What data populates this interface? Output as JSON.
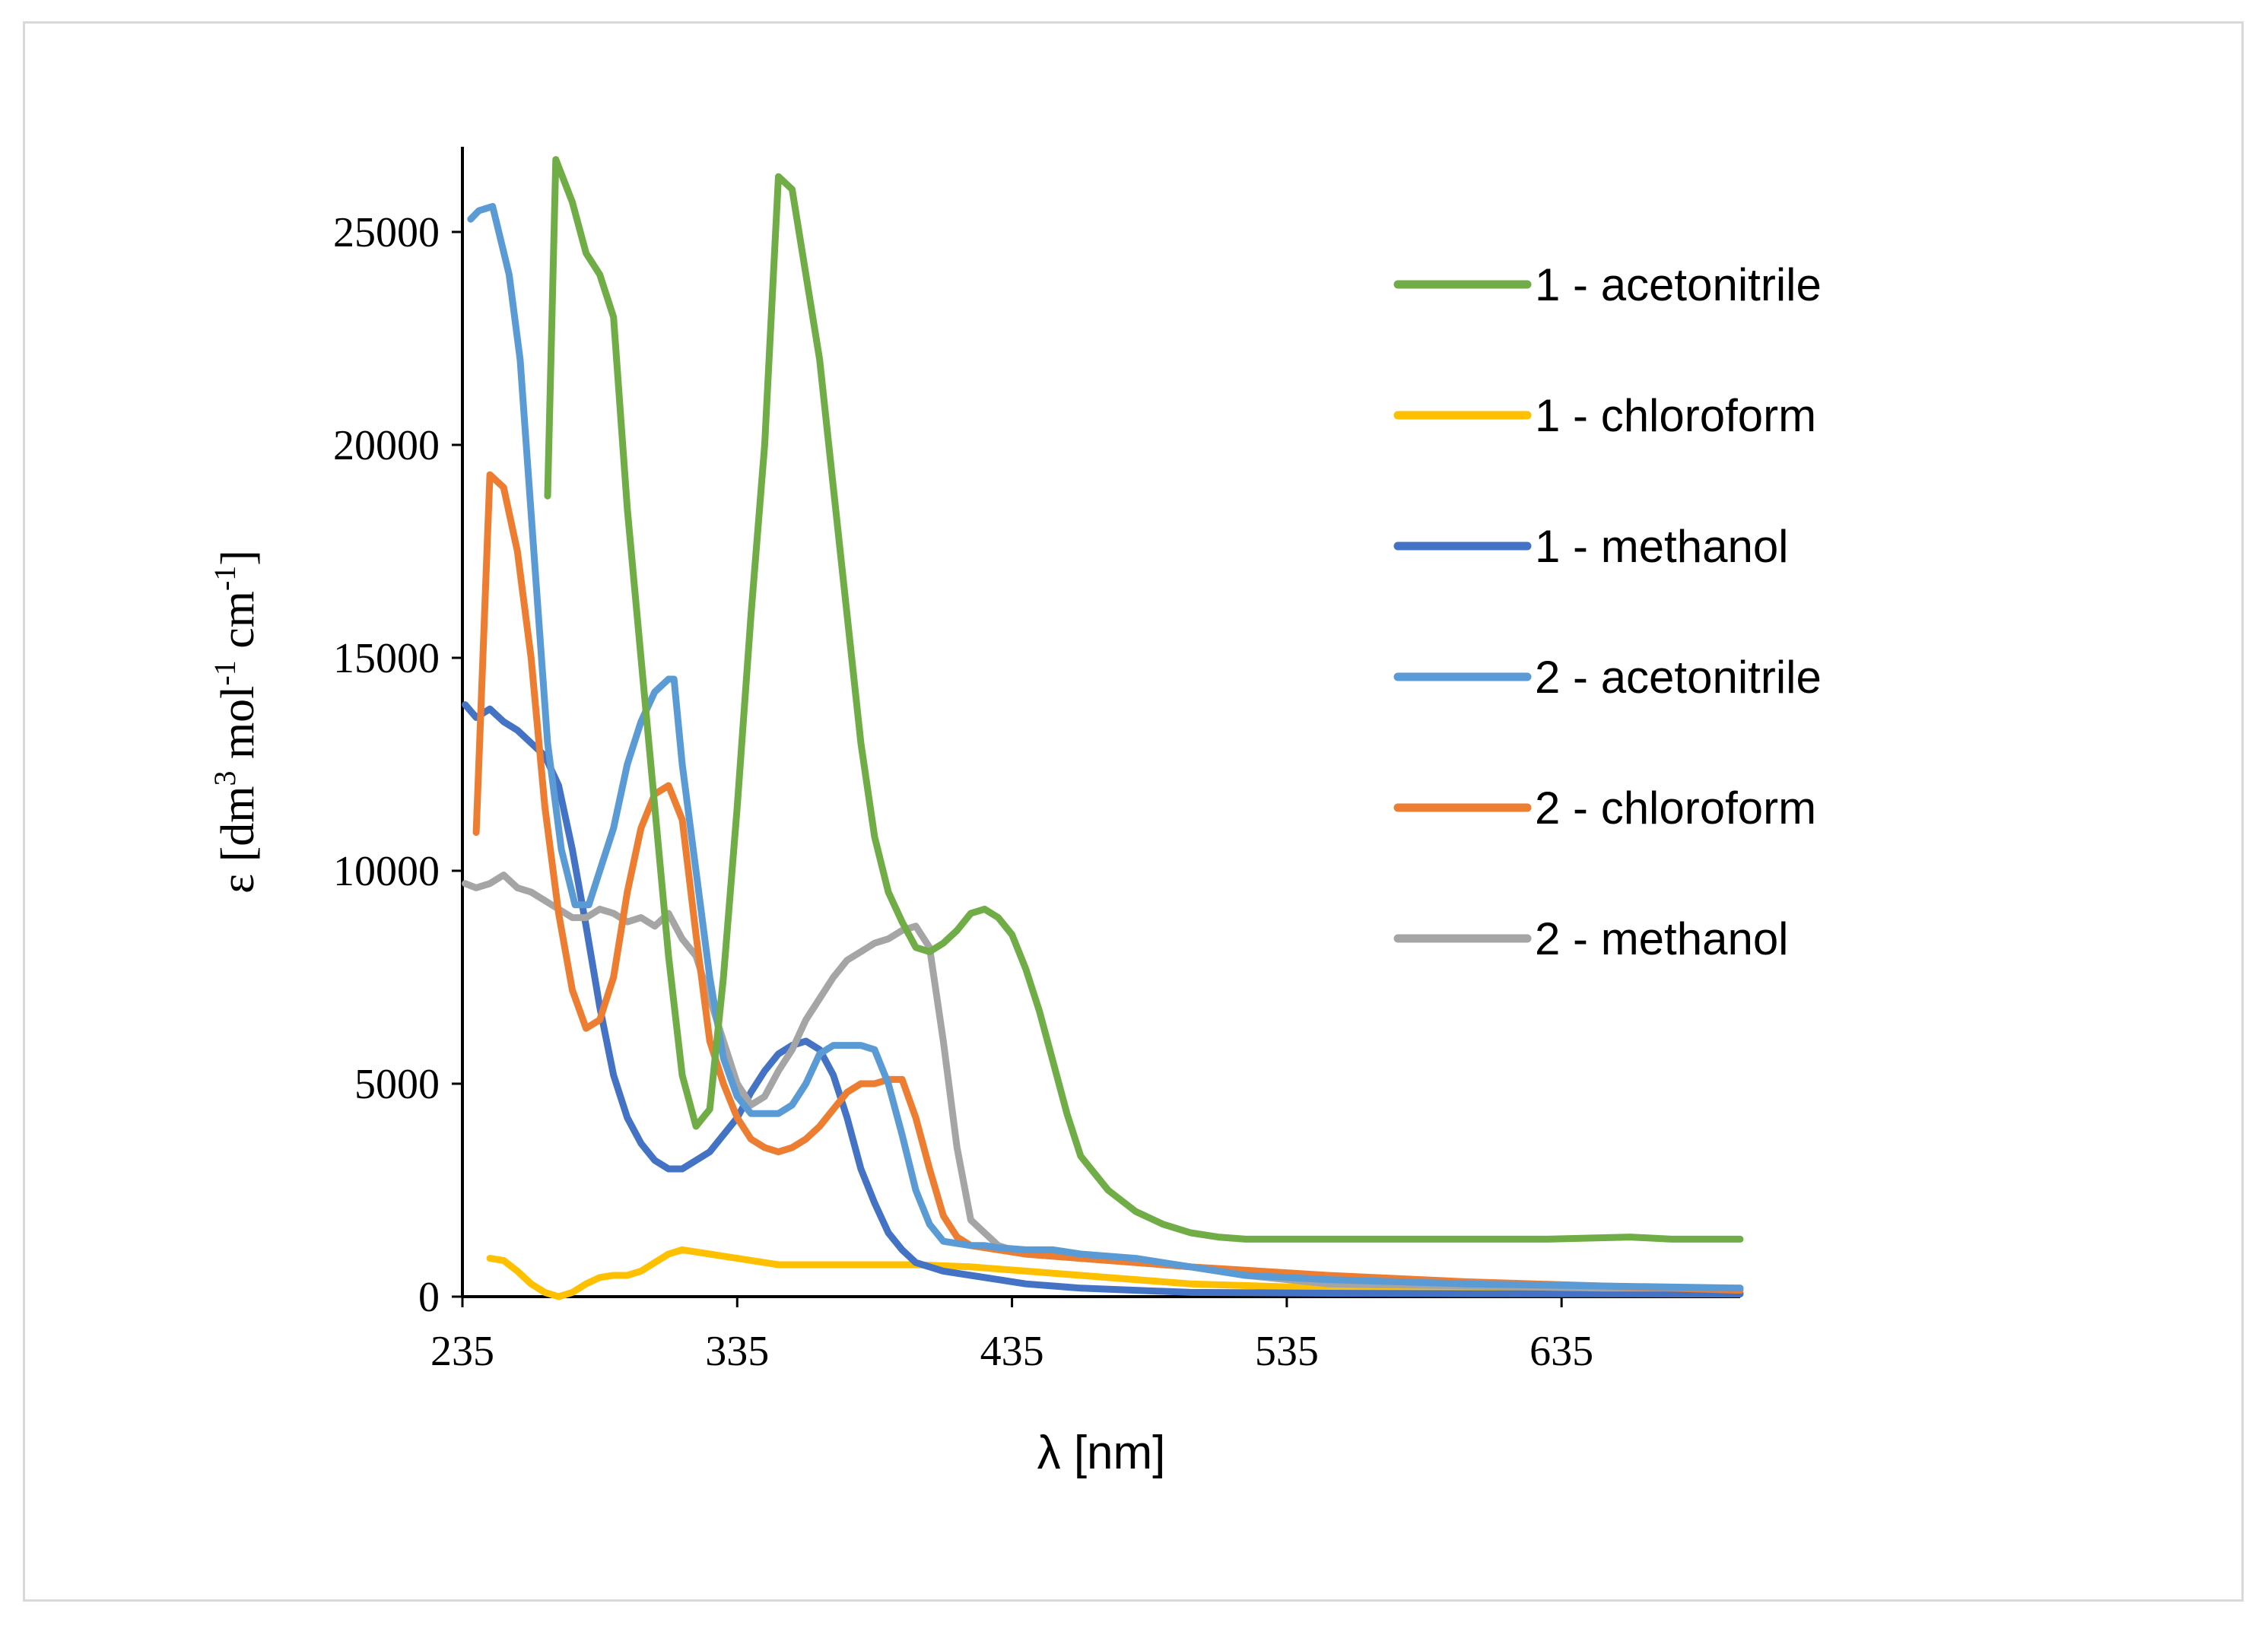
{
  "chart_data": {
    "type": "line",
    "title": "",
    "xlabel": "λ [nm]",
    "ylabel": {
      "parts": [
        {
          "text": "ε [dm"
        },
        {
          "text": "3",
          "sup": true
        },
        {
          "text": " mol"
        },
        {
          "text": "-1",
          "sup": true
        },
        {
          "text": " cm"
        },
        {
          "text": "-1",
          "sup": true
        },
        {
          "text": "]"
        }
      ]
    },
    "xlim": [
      235,
      700
    ],
    "ylim": [
      0,
      27000
    ],
    "xticks": [
      "235",
      "335",
      "435",
      "535",
      "635"
    ],
    "yticks": [
      "0",
      "5000",
      "10000",
      "15000",
      "20000",
      "25000"
    ],
    "grid": false,
    "legend_position": "right",
    "series": [
      {
        "name": "1 - acetonitrile",
        "color": "#70ad47",
        "x": [
          266,
          269,
          275,
          280,
          285,
          290,
          295,
          300,
          305,
          310,
          315,
          320,
          325,
          330,
          335,
          340,
          345,
          350,
          355,
          360,
          365,
          370,
          375,
          380,
          385,
          390,
          395,
          400,
          405,
          410,
          415,
          420,
          425,
          430,
          435,
          440,
          445,
          450,
          455,
          460,
          470,
          480,
          490,
          500,
          510,
          520,
          530,
          540,
          550,
          560,
          580,
          600,
          630,
          660,
          675,
          700
        ],
        "y": [
          18800,
          26700,
          25700,
          24500,
          24000,
          23000,
          18500,
          15000,
          11500,
          8000,
          5200,
          4000,
          4400,
          7500,
          11500,
          16000,
          20000,
          26300,
          26000,
          24000,
          22000,
          19000,
          16000,
          13000,
          10800,
          9500,
          8800,
          8200,
          8100,
          8300,
          8600,
          9000,
          9100,
          8900,
          8500,
          7700,
          6700,
          5500,
          4300,
          3300,
          2500,
          2000,
          1700,
          1500,
          1400,
          1350,
          1350,
          1350,
          1350,
          1350,
          1350,
          1350,
          1350,
          1400,
          1350,
          1350
        ]
      },
      {
        "name": "1 - chloroform",
        "color": "#ffc000",
        "x": [
          245,
          250,
          255,
          260,
          265,
          270,
          275,
          280,
          285,
          290,
          295,
          300,
          305,
          310,
          315,
          320,
          325,
          330,
          335,
          340,
          345,
          350,
          360,
          380,
          400,
          420,
          440,
          460,
          480,
          500,
          550,
          600,
          650,
          700
        ],
        "y": [
          900,
          850,
          600,
          300,
          100,
          0,
          100,
          300,
          450,
          500,
          500,
          600,
          800,
          1000,
          1100,
          1050,
          1000,
          950,
          900,
          850,
          800,
          750,
          750,
          750,
          750,
          700,
          600,
          500,
          400,
          300,
          200,
          150,
          100,
          80
        ]
      },
      {
        "name": "1 - methanol",
        "color": "#4472c4",
        "x": [
          236,
          240,
          245,
          250,
          255,
          260,
          265,
          270,
          275,
          280,
          285,
          290,
          295,
          300,
          305,
          310,
          315,
          320,
          325,
          330,
          335,
          340,
          345,
          350,
          355,
          360,
          365,
          370,
          375,
          380,
          385,
          390,
          395,
          400,
          405,
          410,
          420,
          430,
          440,
          450,
          460,
          480,
          500,
          550,
          600,
          700
        ],
        "y": [
          13900,
          13600,
          13800,
          13500,
          13300,
          13000,
          12700,
          12000,
          10500,
          8700,
          6800,
          5200,
          4200,
          3600,
          3200,
          3000,
          3000,
          3200,
          3400,
          3800,
          4200,
          4800,
          5300,
          5700,
          5900,
          6000,
          5800,
          5200,
          4200,
          3000,
          2200,
          1500,
          1100,
          800,
          700,
          600,
          500,
          400,
          300,
          250,
          200,
          150,
          100,
          80,
          70,
          60
        ]
      },
      {
        "name": "2 - acetonitrile",
        "color": "#5b9bd5",
        "x": [
          238,
          241,
          246,
          252,
          256,
          261,
          266,
          271,
          276,
          281,
          285,
          290,
          295,
          300,
          305,
          310,
          312,
          315,
          320,
          325,
          330,
          335,
          340,
          345,
          350,
          355,
          360,
          365,
          370,
          375,
          380,
          385,
          390,
          395,
          400,
          405,
          410,
          415,
          420,
          425,
          430,
          440,
          450,
          460,
          480,
          500,
          520,
          550,
          600,
          650,
          700
        ],
        "y": [
          25300,
          25500,
          25600,
          24000,
          22000,
          17500,
          13000,
          10500,
          9200,
          9200,
          10000,
          11000,
          12500,
          13500,
          14200,
          14500,
          14500,
          12500,
          10000,
          7500,
          5600,
          4700,
          4300,
          4300,
          4300,
          4500,
          5000,
          5700,
          5900,
          5900,
          5900,
          5800,
          5000,
          3800,
          2500,
          1700,
          1300,
          1250,
          1200,
          1200,
          1150,
          1100,
          1100,
          1000,
          900,
          700,
          500,
          400,
          300,
          250,
          200
        ]
      },
      {
        "name": "2 - chloroform",
        "color": "#ed7d31",
        "x": [
          240,
          245,
          250,
          255,
          260,
          265,
          270,
          275,
          280,
          285,
          290,
          295,
          300,
          305,
          310,
          315,
          320,
          325,
          330,
          335,
          340,
          345,
          350,
          355,
          360,
          365,
          370,
          375,
          380,
          385,
          390,
          395,
          400,
          405,
          410,
          415,
          420,
          430,
          440,
          460,
          480,
          500,
          550,
          600,
          650,
          700
        ],
        "y": [
          10900,
          19300,
          19000,
          17500,
          15000,
          11500,
          9000,
          7200,
          6300,
          6500,
          7500,
          9500,
          11000,
          11800,
          12000,
          11200,
          8500,
          6000,
          5000,
          4200,
          3700,
          3500,
          3400,
          3500,
          3700,
          4000,
          4400,
          4800,
          5000,
          5000,
          5100,
          5100,
          4200,
          3000,
          1900,
          1400,
          1200,
          1100,
          1000,
          900,
          800,
          700,
          500,
          350,
          250,
          150
        ]
      },
      {
        "name": "2 - methanol",
        "color": "#a5a5a5",
        "x": [
          236,
          240,
          245,
          250,
          255,
          260,
          265,
          270,
          275,
          280,
          285,
          290,
          295,
          300,
          305,
          310,
          315,
          320,
          325,
          330,
          335,
          340,
          345,
          350,
          355,
          360,
          365,
          370,
          375,
          380,
          385,
          390,
          395,
          400,
          405,
          410,
          415,
          420,
          430,
          440,
          460,
          480,
          500,
          520,
          550,
          600,
          650,
          700
        ],
        "y": [
          9700,
          9600,
          9700,
          9900,
          9600,
          9500,
          9300,
          9100,
          8900,
          8900,
          9100,
          9000,
          8800,
          8900,
          8700,
          9000,
          8400,
          8000,
          7000,
          6000,
          5000,
          4500,
          4700,
          5300,
          5800,
          6500,
          7000,
          7500,
          7900,
          8100,
          8300,
          8400,
          8600,
          8700,
          8200,
          6000,
          3500,
          1800,
          1200,
          1000,
          900,
          800,
          700,
          500,
          300,
          250,
          200,
          200
        ]
      }
    ]
  }
}
